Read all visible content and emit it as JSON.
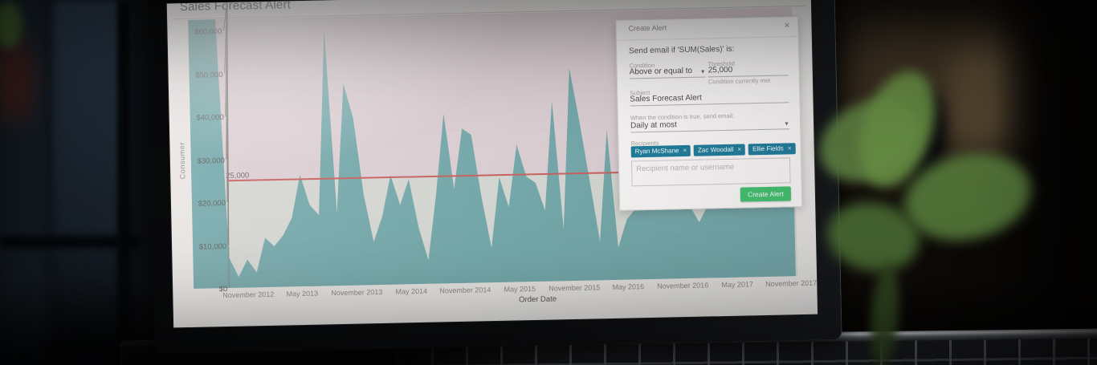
{
  "glyphs": {
    "close": "×",
    "remove": "×",
    "caret": "▼"
  },
  "colors": {
    "accent_teal_chip": "#1d7c9b",
    "accent_green_button": "#41c26e",
    "screen_background": "#e9e7e4"
  },
  "chart_data": {
    "type": "area",
    "title": "Sales Forecast Alert",
    "row": "Consumer",
    "xlabel": "Order Date",
    "series_name": "SUM(Sales)",
    "x_start": "2012-05",
    "x_interval": "month",
    "x_tick_labels": [
      "November 2012",
      "May 2013",
      "November 2013",
      "May 2014",
      "November 2014",
      "May 2015",
      "November 2015",
      "May 2016",
      "November 2016",
      "May 2017",
      "November 2017"
    ],
    "y_tick_labels": [
      "$60,000",
      "$50,000",
      "$40,000",
      "$30,000",
      "$20,000",
      "$10,000",
      "$0"
    ],
    "ylim": [
      0,
      60000
    ],
    "grid": false,
    "legend": false,
    "values": [
      63000,
      63500,
      63200,
      62800,
      7000,
      2500,
      6500,
      3500,
      11500,
      9500,
      12000,
      16000,
      26000,
      19000,
      16500,
      59500,
      17000,
      47000,
      39000,
      21000,
      10000,
      16000,
      25500,
      18500,
      24500,
      13000,
      5500,
      21000,
      39500,
      22000,
      36000,
      34500,
      20000,
      8000,
      24500,
      17500,
      32000,
      24500,
      23000,
      16500,
      42000,
      12000,
      49500,
      37000,
      23000,
      9000,
      35000,
      7500,
      14000,
      16500,
      17000,
      16800,
      17200,
      16500,
      17000,
      16800,
      13000,
      17000,
      16800,
      17200,
      17000,
      16800,
      17200,
      17000,
      16800,
      17000,
      17200
    ],
    "reference_line": {
      "value": 25000,
      "label": "25,000"
    },
    "colors": {
      "area": "#74a9ab",
      "reference_line": "#c9605f",
      "band_above": "#ddd0d4",
      "band_below": "#d6d8d3"
    }
  },
  "dialog": {
    "title": "Create Alert",
    "intro": "Send email if 'SUM(Sales)' is:",
    "condition_label": "Condition",
    "condition_value": "Above or equal to",
    "threshold_label": "Threshold",
    "threshold_value": "25,000",
    "threshold_status": "Condition currently met",
    "subject_label": "Subject",
    "subject_value": "Sales Forecast Alert",
    "frequency_label": "When the condition is true, send email:",
    "frequency_value": "Daily at most",
    "recipients_label": "Recipients",
    "recipients": [
      "Ryan McShane",
      "Zac Woodall",
      "Ellie Fields"
    ],
    "recipients_placeholder": "Recipient name or username",
    "create_button": "Create Alert"
  }
}
